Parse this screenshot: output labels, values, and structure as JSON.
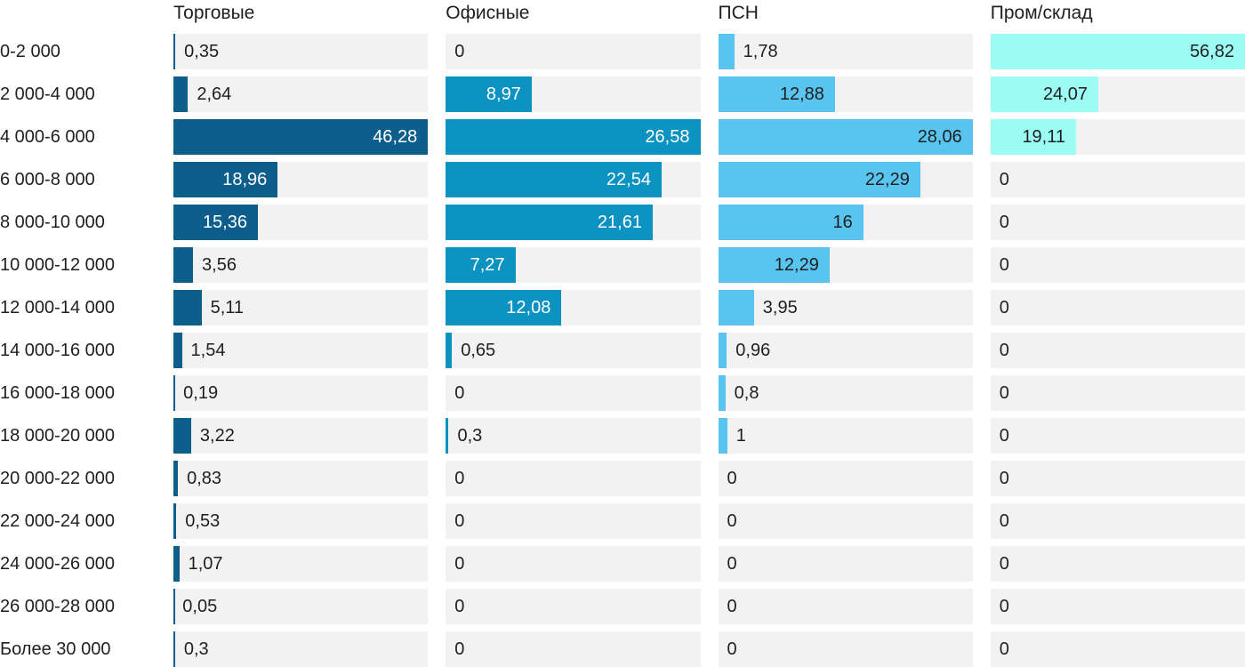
{
  "chart_data": {
    "type": "bar",
    "orientation": "horizontal",
    "title": "",
    "value_scaling": "per-column-max",
    "track_color": "#f2f2f2",
    "text_color": "#1f1f1f",
    "categories": [
      "0-2 000",
      "2 000-4 000",
      "4 000-6 000",
      "6 000-8 000",
      "8 000-10 000",
      "10 000-12 000",
      "12 000-14 000",
      "14 000-16 000",
      "16 000-18 000",
      "18 000-20 000",
      "20 000-22 000",
      "22 000-24 000",
      "24 000-26 000",
      "26 000-28 000",
      "Более 30 000"
    ],
    "series": [
      {
        "name": "Торговые",
        "color": "#0e5e8c",
        "inside_label_color": "#ffffff",
        "max": 46.28,
        "values": [
          0.35,
          2.64,
          46.28,
          18.96,
          15.36,
          3.56,
          5.11,
          1.54,
          0.19,
          3.22,
          0.83,
          0.53,
          1.07,
          0.05,
          0.3
        ],
        "labels": [
          "0,35",
          "2,64",
          "46,28",
          "18,96",
          "15,36",
          "3,56",
          "5,11",
          "1,54",
          "0,19",
          "3,22",
          "0,83",
          "0,53",
          "1,07",
          "0,05",
          "0,3"
        ]
      },
      {
        "name": "Офисные",
        "color": "#0b92c1",
        "inside_label_color": "#ffffff",
        "max": 26.58,
        "values": [
          0,
          8.97,
          26.58,
          22.54,
          21.61,
          7.27,
          12.08,
          0.65,
          0,
          0.3,
          0,
          0,
          0,
          0,
          0
        ],
        "labels": [
          "0",
          "8,97",
          "26,58",
          "22,54",
          "21,61",
          "7,27",
          "12,08",
          "0,65",
          "0",
          "0,3",
          "0",
          "0",
          "0",
          "0",
          "0"
        ]
      },
      {
        "name": "ПСН",
        "color": "#5ac4f0",
        "inside_label_color": "#1f1f1f",
        "max": 28.06,
        "values": [
          1.78,
          12.88,
          28.06,
          22.29,
          16,
          12.29,
          3.95,
          0.96,
          0.8,
          1,
          0,
          0,
          0,
          0,
          0
        ],
        "labels": [
          "1,78",
          "12,88",
          "28,06",
          "22,29",
          "16",
          "12,29",
          "3,95",
          "0,96",
          "0,8",
          "1",
          "0",
          "0",
          "0",
          "0",
          "0"
        ]
      },
      {
        "name": "Пром/склад",
        "color": "#9cfdf5",
        "inside_label_color": "#1f1f1f",
        "max": 56.82,
        "values": [
          56.82,
          24.07,
          19.11,
          0,
          0,
          0,
          0,
          0,
          0,
          0,
          0,
          0,
          0,
          0,
          0
        ],
        "labels": [
          "56,82",
          "24,07",
          "19,11",
          "0",
          "0",
          "0",
          "0",
          "0",
          "0",
          "0",
          "0",
          "0",
          "0",
          "0",
          "0"
        ]
      }
    ]
  }
}
